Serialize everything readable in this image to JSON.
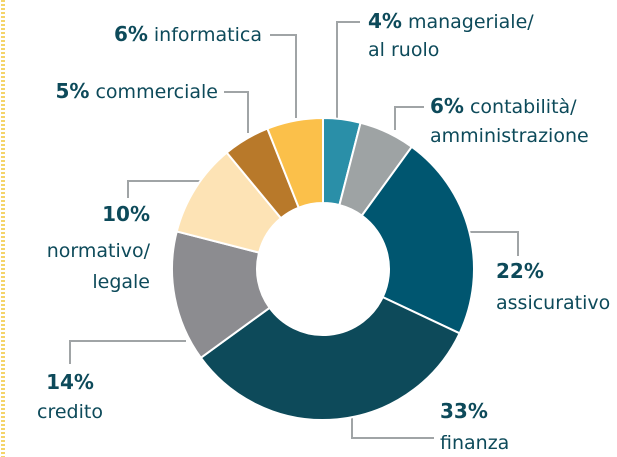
{
  "chart_data": {
    "type": "donut",
    "categories": [
      [
        "manageriale/",
        "al ruolo"
      ],
      [
        "contabilità/",
        "amministrazione"
      ],
      [
        "assicurativo"
      ],
      [
        "finanza"
      ],
      [
        "credito"
      ],
      [
        "normativo/",
        "legale"
      ],
      [
        "commerciale"
      ],
      [
        "informatica"
      ]
    ],
    "values": [
      4,
      6,
      22,
      33,
      14,
      10,
      5,
      6
    ],
    "value_labels": [
      "4%",
      "6%",
      "22%",
      "33%",
      "14%",
      "10%",
      "5%",
      "6%"
    ],
    "colors": [
      "#2a8fa8",
      "#9ea3a4",
      "#005670",
      "#0d4a5a",
      "#8c8c90",
      "#fde3b5",
      "#b8792a",
      "#fbc04a"
    ]
  }
}
